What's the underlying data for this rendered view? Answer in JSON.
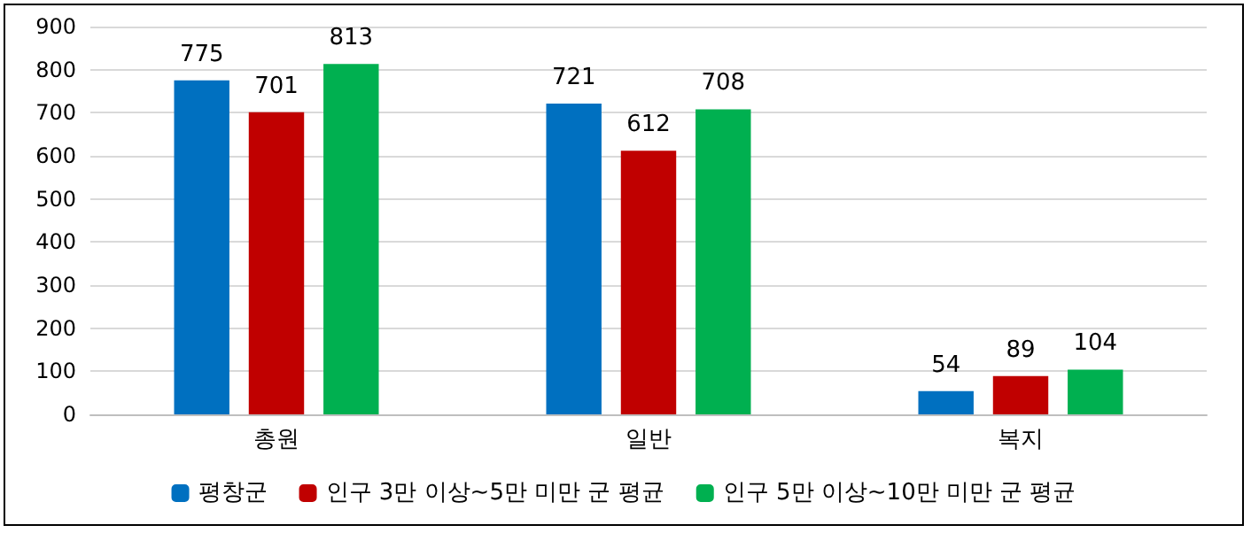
{
  "chart_data": {
    "type": "bar",
    "categories": [
      "총원",
      "일반",
      "복지"
    ],
    "series": [
      {
        "name": "평창군",
        "color": "#0070c0",
        "values": [
          775,
          721,
          54
        ]
      },
      {
        "name": "인구 3만 이상~5만 미만 군 평균",
        "color": "#c00000",
        "values": [
          701,
          612,
          89
        ]
      },
      {
        "name": "인구 5만 이상~10만 미만 군 평균",
        "color": "#00b050",
        "values": [
          813,
          708,
          104
        ]
      }
    ],
    "ylim": [
      0,
      900
    ],
    "yticks": [
      0,
      100,
      200,
      300,
      400,
      500,
      600,
      700,
      800,
      900
    ],
    "grid": "y",
    "legend": "bottom",
    "data_labels": true
  }
}
